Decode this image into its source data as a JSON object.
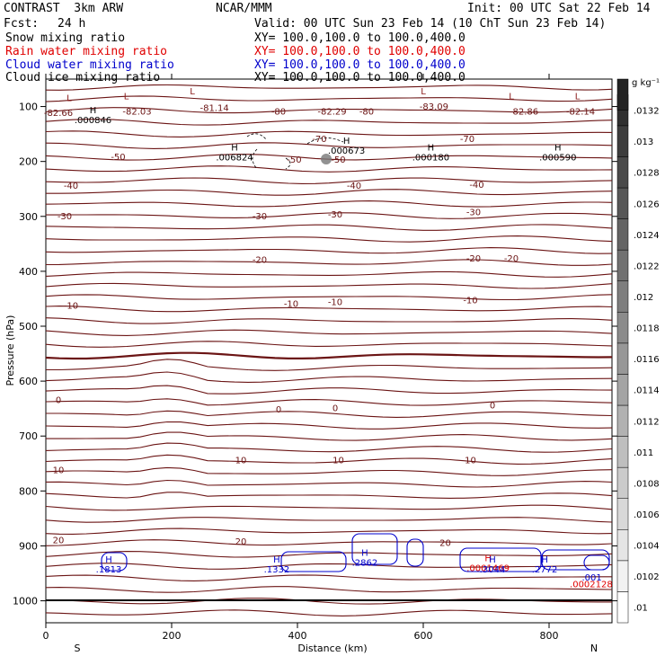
{
  "header": {
    "model": "CONTRAST  3km ARW",
    "org": "NCAR/MMM",
    "init": "Init: 00 UTC Sat 22 Feb 14",
    "fcst_label": "Fcst:",
    "fcst_value": "24 h",
    "valid": "Valid: 00 UTC Sun 23 Feb 14 (10 ChT Sun 23 Feb 14)"
  },
  "fields": [
    {
      "name": "Snow mixing ratio",
      "xy": "XY= 100.0,100.0 to 100.0,400.0",
      "color": "#000000"
    },
    {
      "name": "Rain water mixing ratio",
      "xy": "XY= 100.0,100.0 to 100.0,400.0",
      "color": "#e00000"
    },
    {
      "name": "Cloud water mixing ratio",
      "xy": "XY= 100.0,100.0 to 100.0,400.0",
      "color": "#0000cc"
    },
    {
      "name": "Cloud ice mixing ratio",
      "xy": "XY= 100.0,100.0 to 100.0,400.0",
      "color": "#000000"
    }
  ],
  "chart_data": {
    "type": "contour",
    "xlabel": "Distance (km)",
    "ylabel": "Pressure (hPa)",
    "xlim": [
      0,
      900
    ],
    "ylim": [
      1040,
      50
    ],
    "x_ticks": [
      "0",
      "200",
      "400",
      "600",
      "800"
    ],
    "y_ticks": [
      "100",
      "200",
      "300",
      "400",
      "500",
      "600",
      "700",
      "800",
      "900",
      "1000"
    ],
    "x_end_labels": {
      "left": "S",
      "right": "N"
    },
    "temperature_labels": [
      {
        "x": 20,
        "p": 112,
        "text": "-82.66"
      },
      {
        "x": 145,
        "p": 110,
        "text": "-82.03"
      },
      {
        "x": 268,
        "p": 103,
        "text": "-81.14"
      },
      {
        "x": 370,
        "p": 110,
        "text": "-80"
      },
      {
        "x": 455,
        "p": 110,
        "text": "-82.29"
      },
      {
        "x": 510,
        "p": 110,
        "text": "-80"
      },
      {
        "x": 617,
        "p": 101,
        "text": "-83.09"
      },
      {
        "x": 760,
        "p": 110,
        "text": "-82.86"
      },
      {
        "x": 850,
        "p": 110,
        "text": "-82.14"
      },
      {
        "x": 435,
        "p": 160,
        "text": "-70"
      },
      {
        "x": 670,
        "p": 160,
        "text": "-70"
      },
      {
        "x": 115,
        "p": 192,
        "text": "-50"
      },
      {
        "x": 395,
        "p": 197,
        "text": "-50"
      },
      {
        "x": 465,
        "p": 197,
        "text": "-50"
      },
      {
        "x": 40,
        "p": 245,
        "text": "-40"
      },
      {
        "x": 490,
        "p": 245,
        "text": "-40"
      },
      {
        "x": 685,
        "p": 243,
        "text": "-40"
      },
      {
        "x": 30,
        "p": 300,
        "text": "-30"
      },
      {
        "x": 340,
        "p": 300,
        "text": "-30"
      },
      {
        "x": 460,
        "p": 297,
        "text": "-30"
      },
      {
        "x": 680,
        "p": 293,
        "text": "-30"
      },
      {
        "x": 340,
        "p": 380,
        "text": "-20"
      },
      {
        "x": 680,
        "p": 377,
        "text": "-20"
      },
      {
        "x": 740,
        "p": 377,
        "text": "-20"
      },
      {
        "x": 40,
        "p": 463,
        "text": "-10"
      },
      {
        "x": 390,
        "p": 460,
        "text": "-10"
      },
      {
        "x": 460,
        "p": 457,
        "text": "-10"
      },
      {
        "x": 675,
        "p": 453,
        "text": "-10"
      },
      {
        "x": 20,
        "p": 635,
        "text": "0"
      },
      {
        "x": 370,
        "p": 652,
        "text": "0"
      },
      {
        "x": 460,
        "p": 650,
        "text": "0"
      },
      {
        "x": 710,
        "p": 645,
        "text": "0"
      },
      {
        "x": 20,
        "p": 763,
        "text": "10"
      },
      {
        "x": 310,
        "p": 745,
        "text": "10"
      },
      {
        "x": 465,
        "p": 745,
        "text": "10"
      },
      {
        "x": 675,
        "p": 745,
        "text": "10"
      },
      {
        "x": 20,
        "p": 890,
        "text": "20"
      },
      {
        "x": 310,
        "p": 893,
        "text": "20"
      },
      {
        "x": 635,
        "p": 895,
        "text": "20"
      }
    ],
    "extrema": [
      {
        "x": 37,
        "p": 90,
        "sym": "L",
        "color": "#8b1a1a"
      },
      {
        "x": 128,
        "p": 87,
        "sym": "L",
        "color": "#8b1a1a"
      },
      {
        "x": 233,
        "p": 78,
        "sym": "L",
        "color": "#8b1a1a"
      },
      {
        "x": 600,
        "p": 78,
        "sym": "L",
        "color": "#8b1a1a"
      },
      {
        "x": 740,
        "p": 87,
        "sym": "L",
        "color": "#8b1a1a"
      },
      {
        "x": 845,
        "p": 87,
        "sym": "L",
        "color": "#8b1a1a"
      },
      {
        "x": 75,
        "p": 112,
        "sym": "H",
        "val": ".000846",
        "color": "#000000"
      },
      {
        "x": 300,
        "p": 180,
        "sym": "H",
        "val": ".006824",
        "color": "#000000"
      },
      {
        "x": 478,
        "p": 168,
        "sym": "H",
        "val": ".000673",
        "color": "#000000"
      },
      {
        "x": 612,
        "p": 180,
        "sym": "H",
        "val": ".000180",
        "color": "#000000"
      },
      {
        "x": 814,
        "p": 180,
        "sym": "H",
        "val": ".000590",
        "color": "#000000"
      },
      {
        "x": 100,
        "p": 930,
        "sym": "H",
        "val": ".1813",
        "color": "#0000cc"
      },
      {
        "x": 367,
        "p": 930,
        "sym": "H",
        "val": ".1332",
        "color": "#0000cc"
      },
      {
        "x": 507,
        "p": 918,
        "sym": "H",
        "val": ".2862",
        "color": "#0000cc"
      },
      {
        "x": 703,
        "p": 928,
        "sym": "H",
        "val": ".0001469",
        "color": "#e00000"
      },
      {
        "x": 710,
        "p": 930,
        "sym": "H",
        "val": ".3044",
        "color": "#0000cc"
      },
      {
        "x": 793,
        "p": 930,
        "sym": "H",
        "val": ".2772",
        "color": "#0000cc"
      },
      {
        "x": 868,
        "p": 945,
        "sym": "",
        "val": ".001",
        "color": "#0000cc"
      },
      {
        "x": 867,
        "p": 957,
        "sym": "",
        "val": ".0002128",
        "color": "#e00000"
      }
    ],
    "colorbar": {
      "unit": "g kg⁻¹",
      "min": 0.01,
      "max": 0.0134,
      "ticks": [
        ".01",
        ".0102",
        ".0104",
        ".0106",
        ".0108",
        ".011",
        ".0112",
        ".0114",
        ".0116",
        ".0118",
        ".012",
        ".0122",
        ".0124",
        ".0126",
        ".0128",
        ".013",
        ".0132"
      ]
    }
  }
}
